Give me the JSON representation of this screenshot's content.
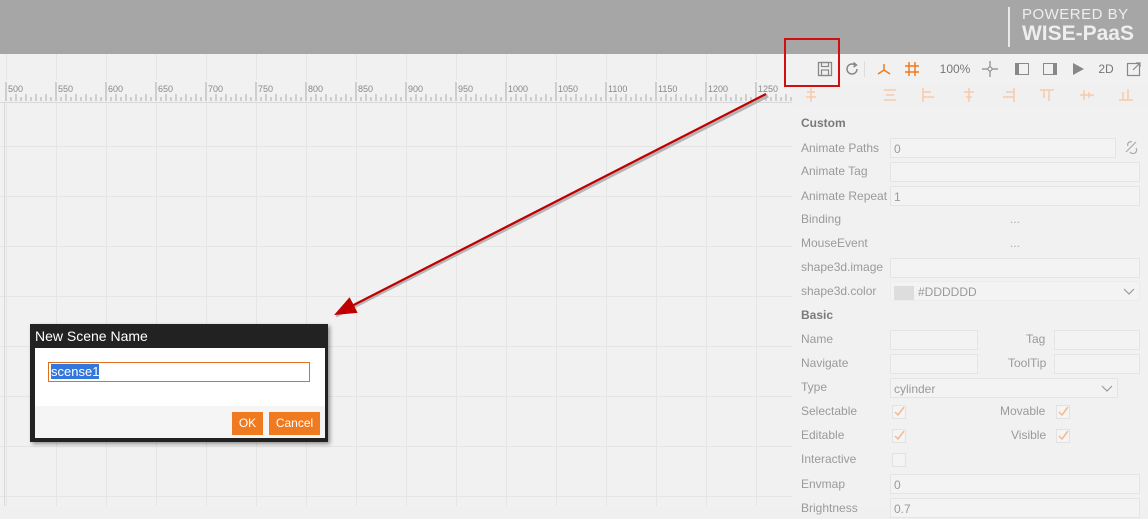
{
  "header": {
    "brand_line1": "POWERED BY",
    "brand_line2": "WISE-PaaS",
    "background": "#a6a6a6"
  },
  "ruler": {
    "labels": [
      "500",
      "550",
      "600",
      "650",
      "700",
      "750",
      "800",
      "850",
      "900",
      "950",
      "1000",
      "1050",
      "1100",
      "1150",
      "1200",
      "1250"
    ]
  },
  "toolbar": {
    "save_icon": "save-icon",
    "refresh_icon": "refresh-icon",
    "zoom_label": "100%",
    "mode_label": "2D"
  },
  "highlight_color": "#d01010",
  "accent_color": "#f07a20",
  "panel": {
    "custom_title": "Custom",
    "animate_paths_label": "Animate Paths",
    "animate_paths_value": "0",
    "animate_tag_label": "Animate Tag",
    "animate_tag_value": "",
    "animate_repeat_label": "Animate Repeat",
    "animate_repeat_value": "1",
    "binding_label": "Binding",
    "binding_value": "...",
    "mouse_event_label": "MouseEvent",
    "mouse_event_value": "...",
    "shape3d_image_label": "shape3d.image",
    "shape3d_color_label": "shape3d.color",
    "shape3d_color_value": "#DDDDDD",
    "basic_title": "Basic",
    "name_label": "Name",
    "tag_label": "Tag",
    "navigate_label": "Navigate",
    "tooltip_label": "ToolTip",
    "type_label": "Type",
    "type_value": "cylinder",
    "selectable_label": "Selectable",
    "movable_label": "Movable",
    "editable_label": "Editable",
    "visible_label": "Visible",
    "interactive_label": "Interactive",
    "envmap_label": "Envmap",
    "envmap_value": "0",
    "brightness_label": "Brightness",
    "brightness_value": "0.7"
  },
  "dialog": {
    "title": "New Scene Name",
    "input_value": "scense1",
    "ok_label": "OK",
    "cancel_label": "Cancel"
  }
}
